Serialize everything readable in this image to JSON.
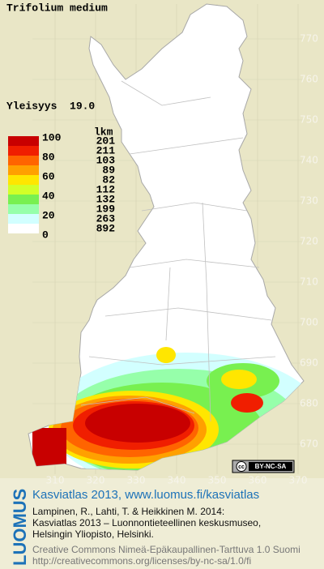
{
  "title": "Trifolium medium",
  "frequency": "Yleisyys  19.0",
  "legend": {
    "count_header": "lkm",
    "levels": [
      100,
      80,
      60,
      40,
      20,
      0
    ],
    "bands": [
      {
        "color": "#c80000",
        "count": 201
      },
      {
        "color": "#f01e00",
        "count": 211
      },
      {
        "color": "#ff6400",
        "count": 103
      },
      {
        "color": "#ffa000",
        "count": 89
      },
      {
        "color": "#ffe600",
        "count": 82
      },
      {
        "color": "#d2ff28",
        "count": 112
      },
      {
        "color": "#78f050",
        "count": 132
      },
      {
        "color": "#96ffaa",
        "count": 199
      },
      {
        "color": "#d2ffff",
        "count": 263
      },
      {
        "color": "#ffffff",
        "count": 892
      }
    ]
  },
  "northing_labels": [
    770,
    760,
    750,
    740,
    730,
    720,
    710,
    700,
    690,
    680,
    670
  ],
  "easting_labels": [
    310,
    320,
    330,
    340,
    350,
    360,
    370
  ],
  "badge": {
    "icon": "cc",
    "text": "BY-NC-SA"
  },
  "footer": {
    "logo": "LUOMUS",
    "headline": "Kasviatlas 2013, www.luomus.fi/kasviatlas",
    "citation": [
      "Lampinen, R., Lahti, T. & Heikkinen M. 2014:",
      "Kasviatlas 2013 – Luonnontieteellinen keskusmuseo,",
      "Helsingin Yliopisto, Helsinki."
    ],
    "license": [
      "Creative Commons Nimeä-Epäkaupallinen-Tarttuva 1.0 Suomi",
      "http://creativecommons.org/licenses/by-nc-sa/1.0/fi"
    ]
  }
}
